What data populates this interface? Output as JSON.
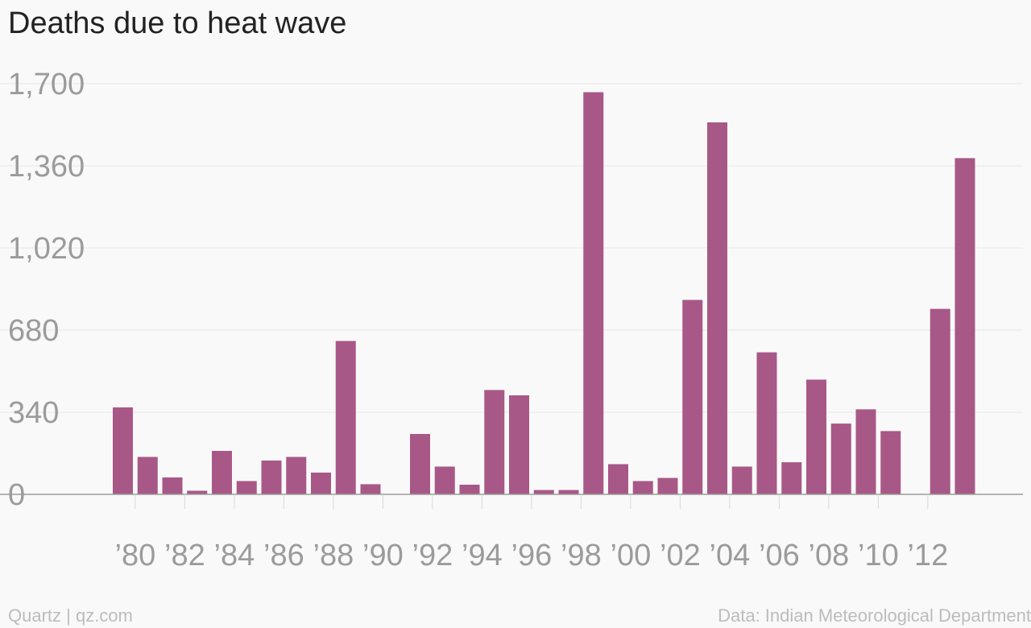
{
  "chart_data": {
    "type": "bar",
    "title": "Deaths due to heat wave",
    "xlabel": "",
    "ylabel": "",
    "ylim": [
      0,
      1700
    ],
    "yticks": [
      0,
      340,
      680,
      1020,
      1360,
      1700
    ],
    "ytick_labels": [
      "0",
      "340",
      "680",
      "1,020",
      "1,360",
      "1,700"
    ],
    "categories": [
      1979,
      1980,
      1981,
      1982,
      1983,
      1984,
      1985,
      1986,
      1987,
      1988,
      1989,
      1990,
      1991,
      1992,
      1993,
      1994,
      1995,
      1996,
      1997,
      1998,
      1999,
      2000,
      2001,
      2002,
      2003,
      2004,
      2005,
      2006,
      2007,
      2008,
      2009,
      2010,
      2011,
      2012,
      2013
    ],
    "values": [
      360,
      155,
      70,
      15,
      180,
      55,
      140,
      155,
      90,
      635,
      42,
      0,
      250,
      115,
      40,
      432,
      410,
      18,
      18,
      1665,
      125,
      55,
      68,
      805,
      1540,
      115,
      588,
      133,
      475,
      293,
      352,
      262,
      0,
      768,
      1392
    ],
    "xtick_labels": [
      {
        "year": 1980,
        "label": "’80"
      },
      {
        "year": 1982,
        "label": "’82"
      },
      {
        "year": 1984,
        "label": "’84"
      },
      {
        "year": 1986,
        "label": "’86"
      },
      {
        "year": 1988,
        "label": "’88"
      },
      {
        "year": 1990,
        "label": "’90"
      },
      {
        "year": 1992,
        "label": "’92"
      },
      {
        "year": 1994,
        "label": "’94"
      },
      {
        "year": 1996,
        "label": "’96"
      },
      {
        "year": 1998,
        "label": "’98"
      },
      {
        "year": 2000,
        "label": "’00"
      },
      {
        "year": 2002,
        "label": "’02"
      },
      {
        "year": 2004,
        "label": "’04"
      },
      {
        "year": 2006,
        "label": "’06"
      },
      {
        "year": 2008,
        "label": "’08"
      },
      {
        "year": 2010,
        "label": "’10"
      },
      {
        "year": 2012,
        "label": "’12"
      }
    ],
    "grid": true,
    "bar_color": "#a85887"
  },
  "footer": {
    "source_left": "Quartz | qz.com",
    "source_right": "Data: Indian Meteorological Department"
  }
}
